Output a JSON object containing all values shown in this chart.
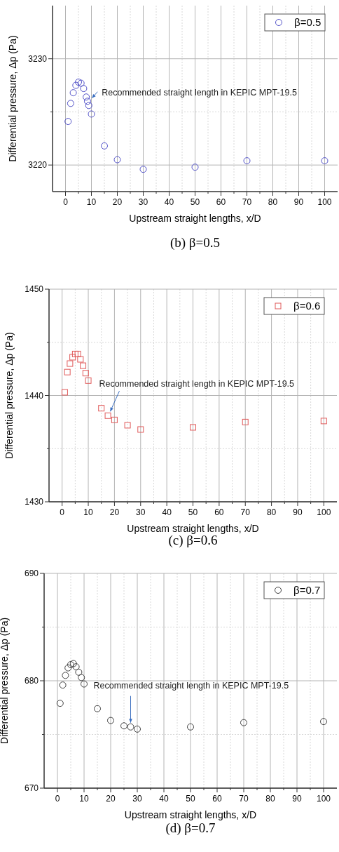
{
  "chart_data": [
    {
      "type": "scatter",
      "title": "(b) β=0.5",
      "xlabel": "Upstream straight lengths, x/D",
      "ylabel": "Differential pressure, Δp (Pa)",
      "x": [
        1,
        2,
        3,
        4,
        5,
        6,
        7,
        8,
        8.5,
        9,
        10,
        15,
        20,
        30,
        50,
        70,
        100
      ],
      "series": [
        {
          "name": "β=0.5",
          "color": "#5050c8",
          "values": [
            3224.1,
            3225.8,
            3226.8,
            3227.5,
            3227.8,
            3227.7,
            3227.2,
            3226.4,
            3226.0,
            3225.6,
            3224.8,
            3221.8,
            3220.5,
            3219.6,
            3219.8,
            3220.4,
            3220.4
          ]
        }
      ],
      "xlim": [
        -5,
        105
      ],
      "xticks": [
        0,
        {
          "value": 5,
          "label": null
        },
        10,
        {
          "value": 15,
          "label": null
        },
        20,
        {
          "value": 25,
          "label": null
        },
        30,
        {
          "value": 35,
          "label": null
        },
        40,
        {
          "value": 45,
          "label": null
        },
        50,
        {
          "value": 55,
          "label": null
        },
        60,
        {
          "value": 65,
          "label": null
        },
        70,
        {
          "value": 75,
          "label": null
        },
        80,
        {
          "value": 85,
          "label": null
        },
        90,
        {
          "value": 95,
          "label": null
        },
        100
      ],
      "ylim": [
        3217.5,
        3235
      ],
      "yticks": [
        3220,
        {
          "value": 3225,
          "label": null
        },
        3230
      ],
      "annotations": [
        {
          "text": "Recommended straight length in KEPIC MPT-19.5",
          "x": 10.2,
          "y": 3226.3
        }
      ],
      "grid": true,
      "legend": "top right",
      "marker": "circle"
    },
    {
      "type": "scatter",
      "title": "(c) β=0.6",
      "xlabel": "Upstream straight lengths, x/D",
      "ylabel": "Differential pressure, Δp (Pa)",
      "x": [
        1,
        2,
        3,
        4,
        5,
        6,
        7,
        8,
        9,
        10,
        15,
        17.5,
        20,
        25,
        30,
        50,
        70,
        100
      ],
      "series": [
        {
          "name": "β=0.6",
          "color": "#e05a5a",
          "values": [
            1440.3,
            1442.2,
            1443.0,
            1443.6,
            1443.9,
            1443.9,
            1443.4,
            1442.8,
            1442.1,
            1441.4,
            1438.8,
            1438.1,
            1437.7,
            1437.2,
            1436.8,
            1437.0,
            1437.5,
            1437.6
          ]
        }
      ],
      "xlim": [
        -5,
        105
      ],
      "xticks": [
        0,
        {
          "value": 5,
          "label": null
        },
        10,
        {
          "value": 15,
          "label": null
        },
        20,
        {
          "value": 25,
          "label": null
        },
        30,
        {
          "value": 35,
          "label": null
        },
        40,
        {
          "value": 45,
          "label": null
        },
        50,
        {
          "value": 55,
          "label": null
        },
        60,
        {
          "value": 65,
          "label": null
        },
        70,
        {
          "value": 75,
          "label": null
        },
        80,
        {
          "value": 85,
          "label": null
        },
        90,
        {
          "value": 95,
          "label": null
        },
        100
      ],
      "ylim": [
        1430,
        1450
      ],
      "yticks": [
        1430,
        {
          "value": 1435,
          "label": null
        },
        1440,
        {
          "value": 1445,
          "label": null
        },
        1450
      ],
      "annotations": [
        {
          "text": "Recommended straight length in KEPIC MPT-19.5",
          "x": 18.4,
          "y": 1438.5
        }
      ],
      "grid": true,
      "legend": "top right",
      "marker": "square"
    },
    {
      "type": "scatter",
      "title": "(d) β=0.7",
      "xlabel": "Upstream straight lengths, x/D",
      "ylabel": "Differential pressure, Δp (Pa)",
      "x": [
        1,
        2,
        3,
        4,
        5,
        6,
        7,
        8,
        9,
        10,
        15,
        20,
        25,
        27.5,
        30,
        50,
        70,
        100
      ],
      "series": [
        {
          "name": "β=0.7",
          "color": "#404040",
          "values": [
            677.9,
            679.6,
            680.5,
            681.2,
            681.5,
            681.6,
            681.3,
            680.8,
            680.3,
            679.7,
            677.4,
            676.3,
            675.8,
            675.7,
            675.5,
            675.7,
            676.1,
            676.2
          ]
        }
      ],
      "xlim": [
        -5,
        105
      ],
      "xticks": [
        0,
        {
          "value": 5,
          "label": null
        },
        10,
        {
          "value": 15,
          "label": null
        },
        20,
        {
          "value": 25,
          "label": null
        },
        30,
        {
          "value": 35,
          "label": null
        },
        40,
        {
          "value": 45,
          "label": null
        },
        50,
        {
          "value": 55,
          "label": null
        },
        60,
        {
          "value": 65,
          "label": null
        },
        70,
        {
          "value": 75,
          "label": null
        },
        80,
        {
          "value": 85,
          "label": null
        },
        90,
        {
          "value": 95,
          "label": null
        },
        100
      ],
      "ylim": [
        670,
        690
      ],
      "yticks": [
        670,
        {
          "value": 675,
          "label": null
        },
        680,
        {
          "value": 685,
          "label": null
        },
        690
      ],
      "annotations": [
        {
          "text": "Recommended straight length in KEPIC MPT-19.5",
          "x": 27.5,
          "y": 676.1
        }
      ],
      "grid": true,
      "legend": "top right",
      "marker": "circle"
    }
  ]
}
